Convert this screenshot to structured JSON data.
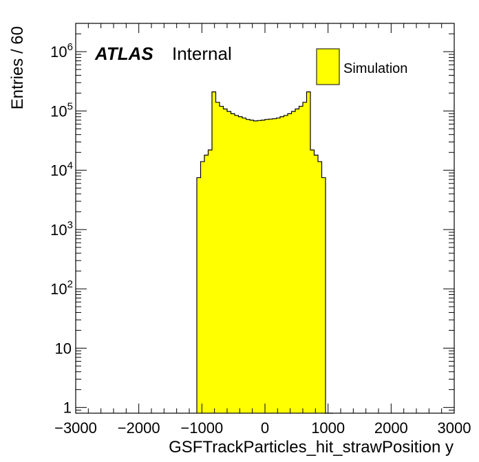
{
  "chart_data": {
    "type": "bar",
    "histogram": true,
    "log_y": true,
    "xlabel": "GSFTrackParticles_hit_strawPosition y",
    "ylabel": "Entries / 60",
    "xlim": [
      -3000,
      3000
    ],
    "ylim": [
      0.8,
      3000000
    ],
    "grid": false,
    "legend_position": "top-right",
    "bin_width": 60,
    "x_ticks": [
      "−3000",
      "−2000",
      "−1000",
      "0",
      "1000",
      "2000",
      "3000"
    ],
    "y_ticks": [
      {
        "base": "1",
        "exp": ""
      },
      {
        "base": "10",
        "exp": ""
      },
      {
        "base": "10",
        "exp": "2"
      },
      {
        "base": "10",
        "exp": "3"
      },
      {
        "base": "10",
        "exp": "4"
      },
      {
        "base": "10",
        "exp": "5"
      },
      {
        "base": "10",
        "exp": "6"
      }
    ],
    "bin_edges": [
      -1080,
      -1020,
      -960,
      -900,
      -840,
      -780,
      -720,
      -660,
      -600,
      -540,
      -480,
      -420,
      -360,
      -300,
      -240,
      -180,
      -120,
      -60,
      0,
      60,
      120,
      180,
      240,
      300,
      360,
      420,
      480,
      540,
      600,
      660,
      720,
      780,
      840,
      900,
      960,
      1020,
      1080
    ],
    "series": [
      {
        "name": "Simulation",
        "color": "#ffff00",
        "edge_color": "#000000",
        "values": [
          7500,
          14000,
          18000,
          22000,
          210000,
          140000,
          120000,
          108000,
          98000,
          90000,
          84000,
          80000,
          76000,
          72000,
          70000,
          68000,
          69000,
          70000,
          72000,
          73000,
          74000,
          76000,
          80000,
          84000,
          90000,
          98000,
          108000,
          120000,
          140000,
          210000,
          22000,
          18000,
          14000,
          7500,
          0,
          0
        ]
      }
    ]
  },
  "labels": {
    "atlas": "ATLAS",
    "internal": "Internal"
  }
}
